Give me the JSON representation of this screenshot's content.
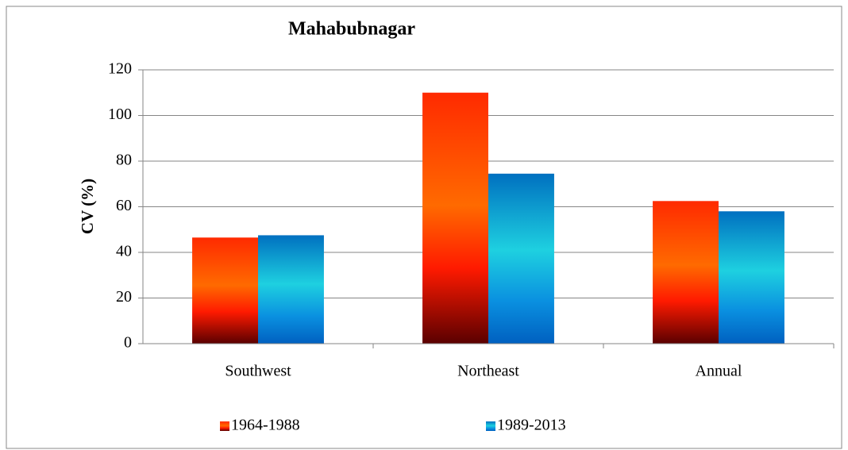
{
  "chart_data": {
    "type": "bar",
    "title": "Mahabubnagar",
    "y_label": "CV (%)",
    "categories": [
      "Southwest",
      "Northeast",
      "Annual"
    ],
    "series": [
      {
        "name": "1964-1988",
        "color": "#ff6a00",
        "values": [
          46.5,
          110,
          62.5
        ]
      },
      {
        "name": "1989-2013",
        "color": "#1ed0e0",
        "values": [
          47.5,
          74.5,
          58
        ]
      }
    ],
    "ylim": [
      0,
      120
    ],
    "yticks": [
      0,
      20,
      40,
      60,
      80,
      100,
      120
    ],
    "grid": true,
    "legend": "bottom"
  }
}
